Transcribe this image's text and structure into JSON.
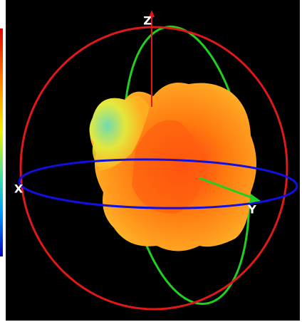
{
  "axes": {
    "x": "X",
    "y": "Y",
    "z": "Z"
  }
}
